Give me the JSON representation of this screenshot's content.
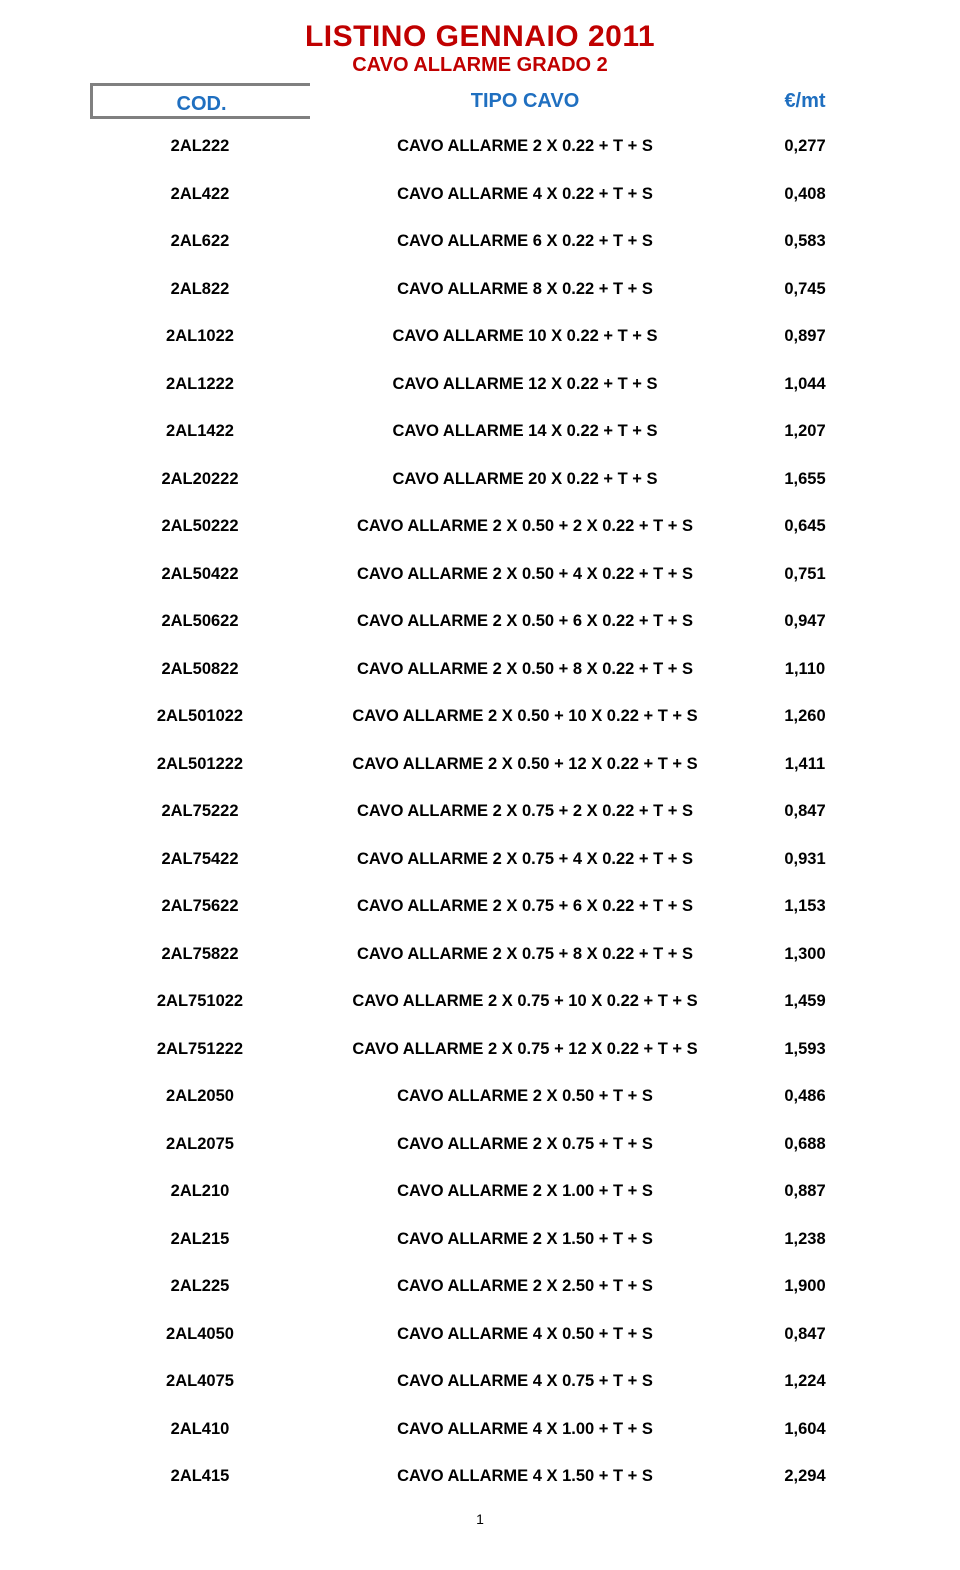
{
  "title": {
    "text": "LISTINO GENNAIO 2011",
    "color": "#c00000",
    "fontsize": 30
  },
  "subtitle": {
    "text": "CAVO ALLARME  GRADO 2",
    "color": "#c00000",
    "fontsize": 20
  },
  "header": {
    "cod": "COD.",
    "tipo": "TIPO CAVO",
    "price": "€/mt",
    "color": "#1f6fc0",
    "border_color": "#808080",
    "fontsize": 20
  },
  "table": {
    "row_fontsize": 16.5,
    "text_color": "#000000",
    "columns": [
      "cod",
      "tipo",
      "price"
    ],
    "rows": [
      {
        "cod": "2AL222",
        "tipo": "CAVO ALLARME 2 X 0.22 + T + S",
        "price": "0,277"
      },
      {
        "cod": "2AL422",
        "tipo": "CAVO ALLARME 4 X 0.22 + T + S",
        "price": "0,408"
      },
      {
        "cod": "2AL622",
        "tipo": "CAVO ALLARME 6 X 0.22 + T + S",
        "price": "0,583"
      },
      {
        "cod": "2AL822",
        "tipo": "CAVO ALLARME 8 X 0.22 + T + S",
        "price": "0,745"
      },
      {
        "cod": "2AL1022",
        "tipo": "CAVO ALLARME 10 X 0.22 + T + S",
        "price": "0,897"
      },
      {
        "cod": "2AL1222",
        "tipo": "CAVO ALLARME 12 X 0.22 + T + S",
        "price": "1,044"
      },
      {
        "cod": "2AL1422",
        "tipo": "CAVO ALLARME 14 X 0.22 + T + S",
        "price": "1,207"
      },
      {
        "cod": "2AL20222",
        "tipo": "CAVO ALLARME 20 X 0.22 + T + S",
        "price": "1,655"
      },
      {
        "cod": "2AL50222",
        "tipo": "CAVO ALLARME 2 X 0.50 + 2 X 0.22 + T + S",
        "price": "0,645"
      },
      {
        "cod": "2AL50422",
        "tipo": "CAVO ALLARME 2 X 0.50 + 4 X 0.22 + T + S",
        "price": "0,751"
      },
      {
        "cod": "2AL50622",
        "tipo": "CAVO ALLARME 2 X 0.50 + 6 X 0.22 + T + S",
        "price": "0,947"
      },
      {
        "cod": "2AL50822",
        "tipo": "CAVO ALLARME 2 X 0.50 + 8 X 0.22 + T + S",
        "price": "1,110"
      },
      {
        "cod": "2AL501022",
        "tipo": "CAVO ALLARME 2 X 0.50 + 10 X 0.22 + T + S",
        "price": "1,260"
      },
      {
        "cod": "2AL501222",
        "tipo": "CAVO ALLARME 2 X 0.50 + 12 X 0.22 + T + S",
        "price": "1,411"
      },
      {
        "cod": "2AL75222",
        "tipo": "CAVO ALLARME 2 X 0.75 + 2 X 0.22 + T + S",
        "price": "0,847"
      },
      {
        "cod": "2AL75422",
        "tipo": "CAVO ALLARME 2 X 0.75 + 4 X 0.22 + T + S",
        "price": "0,931"
      },
      {
        "cod": "2AL75622",
        "tipo": "CAVO ALLARME 2 X 0.75 + 6 X 0.22 + T + S",
        "price": "1,153"
      },
      {
        "cod": "2AL75822",
        "tipo": "CAVO ALLARME 2 X 0.75 + 8 X 0.22 + T + S",
        "price": "1,300"
      },
      {
        "cod": "2AL751022",
        "tipo": "CAVO ALLARME 2 X 0.75 + 10 X 0.22 + T + S",
        "price": "1,459"
      },
      {
        "cod": "2AL751222",
        "tipo": "CAVO ALLARME 2 X 0.75 + 12 X 0.22 + T + S",
        "price": "1,593"
      },
      {
        "cod": "2AL2050",
        "tipo": "CAVO ALLARME 2 X 0.50 + T + S",
        "price": "0,486"
      },
      {
        "cod": "2AL2075",
        "tipo": "CAVO ALLARME 2 X 0.75 + T + S",
        "price": "0,688"
      },
      {
        "cod": "2AL210",
        "tipo": "CAVO ALLARME 2 X 1.00 + T + S",
        "price": "0,887"
      },
      {
        "cod": "2AL215",
        "tipo": "CAVO ALLARME 2 X 1.50 + T + S",
        "price": "1,238"
      },
      {
        "cod": "2AL225",
        "tipo": "CAVO ALLARME 2 X 2.50 + T + S",
        "price": "1,900"
      },
      {
        "cod": "2AL4050",
        "tipo": "CAVO ALLARME 4 X 0.50 + T + S",
        "price": "0,847"
      },
      {
        "cod": "2AL4075",
        "tipo": "CAVO ALLARME 4 X 0.75 + T + S",
        "price": "1,224"
      },
      {
        "cod": "2AL410",
        "tipo": "CAVO ALLARME 4 X 1.00 + T + S",
        "price": "1,604"
      },
      {
        "cod": "2AL415",
        "tipo": "CAVO ALLARME 4 X 1.50 + T + S",
        "price": "2,294"
      }
    ]
  },
  "page_number": "1"
}
